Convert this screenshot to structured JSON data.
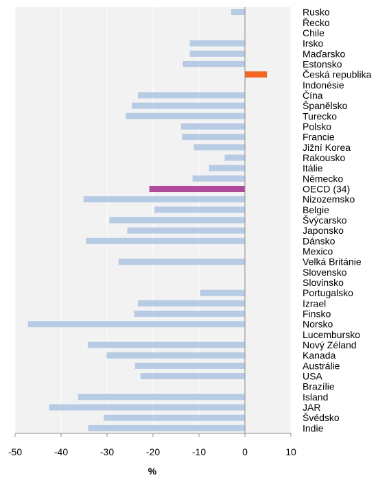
{
  "chart_data": {
    "type": "bar",
    "orientation": "horizontal",
    "xlabel": "%",
    "ylabel": "",
    "xlim": [
      -50,
      10
    ],
    "xticks": [
      -50,
      -40,
      -30,
      -20,
      -10,
      0,
      10
    ],
    "grid": "vertical-white-on-grey",
    "legend": "none",
    "categories": [
      "Rusko",
      "Řecko",
      "Chile",
      "Irsko",
      "Maďarsko",
      "Estonsko",
      "Česká republika",
      "Indonésie",
      "Čína",
      "Španělsko",
      "Turecko",
      "Polsko",
      "Francie",
      "Jižní Korea",
      "Rakousko",
      "Itálie",
      "Německo",
      "OECD (34)",
      "Nizozemsko",
      "Belgie",
      "Švýcarsko",
      "Japonsko",
      "Dánsko",
      "Mexico",
      "Velká Británie",
      "Slovensko",
      "Slovinsko",
      "Portugalsko",
      "Izrael",
      "Finsko",
      "Norsko",
      "Lucembursko",
      "Nový Zéland",
      "Kanada",
      "Austrálie",
      "USA",
      "Brazílie",
      "Island",
      "JAR",
      "Švédsko",
      "Indie"
    ],
    "values": [
      -3,
      0,
      0,
      -12,
      -12,
      -13.5,
      4.8,
      0,
      -23.3,
      -24.6,
      -25.9,
      -13.9,
      -13.7,
      -11.1,
      -4.4,
      -7.8,
      -11.4,
      -20.8,
      -35.1,
      -19.7,
      -29.5,
      -25.6,
      -34.6,
      0,
      -27.5,
      0,
      0,
      -9.7,
      -23.3,
      -24.1,
      -47.2,
      0,
      -34.2,
      -30.1,
      -23.9,
      -22.7,
      0,
      -36.3,
      -42.6,
      -30.7,
      -34.1
    ],
    "colors": {
      "default": "#b7cbe4",
      "highlight_country": "#f26522",
      "oecd": "#b04a9b",
      "plot_background": "#f2f2f2",
      "grid": "#ffffff"
    },
    "highlights": {
      "Česká republika": "highlight_country",
      "OECD (34)": "oecd"
    }
  }
}
